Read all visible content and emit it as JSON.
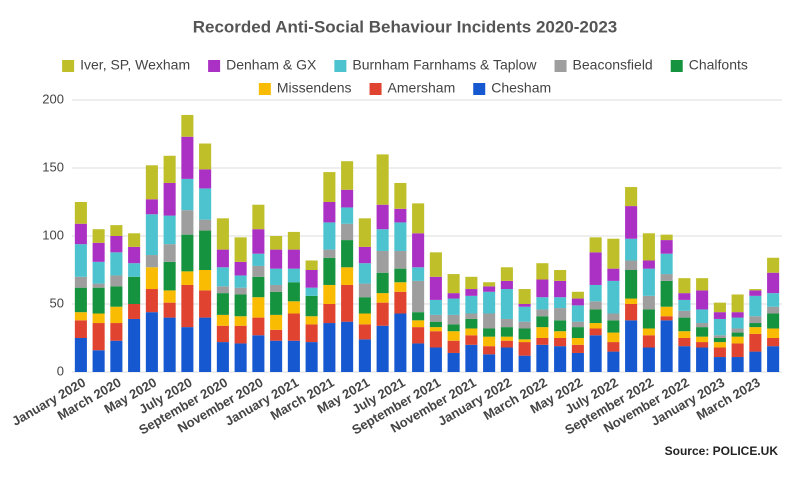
{
  "chart_data": {
    "type": "stacked_bar",
    "title": "Recorded Anti-Social Behaviour Incidents 2020-2023",
    "source": "Source:  POLICE.UK",
    "categories": [
      "January 2020",
      null,
      "March 2020",
      null,
      "May 2020",
      null,
      "July 2020",
      null,
      "September 2020",
      null,
      "November 2020",
      null,
      "January 2021",
      null,
      "March 2021",
      null,
      "May 2021",
      null,
      "July 2021",
      null,
      "September 2021",
      null,
      "November 2021",
      null,
      "January 2022",
      null,
      "March 2022",
      null,
      "May 2022",
      null,
      "July 2022",
      null,
      "September 2022",
      null,
      "November 2022",
      null,
      "January 2023",
      null,
      "March 2023",
      null
    ],
    "series": [
      {
        "name": "Iver, SP, Wexham",
        "color": "#bfbf2a",
        "values": [
          16,
          10,
          8,
          10,
          25,
          20,
          16,
          19,
          23,
          18,
          18,
          10,
          13,
          7,
          22,
          21,
          21,
          37,
          19,
          22,
          18,
          14,
          9,
          3,
          10,
          11,
          12,
          8,
          5,
          11,
          22,
          14,
          20,
          4,
          11,
          9,
          7,
          13,
          1,
          11
        ]
      },
      {
        "name": "Denham & GX",
        "color": "#ab30c4",
        "values": [
          15,
          14,
          12,
          12,
          11,
          24,
          31,
          14,
          13,
          10,
          18,
          14,
          14,
          13,
          15,
          13,
          12,
          18,
          10,
          25,
          17,
          4,
          5,
          4,
          6,
          2,
          13,
          12,
          5,
          24,
          9,
          24,
          6,
          10,
          5,
          14,
          5,
          4,
          4,
          15
        ]
      },
      {
        "name": "Burnham Farnhams & Taplow",
        "color": "#4cc3cf",
        "values": [
          24,
          16,
          17,
          10,
          30,
          21,
          23,
          23,
          14,
          9,
          9,
          12,
          10,
          6,
          20,
          12,
          15,
          16,
          21,
          10,
          11,
          12,
          13,
          16,
          22,
          11,
          9,
          8,
          12,
          12,
          24,
          16,
          20,
          15,
          8,
          10,
          12,
          8,
          15,
          10
        ]
      },
      {
        "name": "Beaconsfield",
        "color": "#9e9e9e",
        "values": [
          8,
          3,
          8,
          0,
          9,
          13,
          18,
          8,
          5,
          5,
          8,
          5,
          0,
          0,
          6,
          12,
          10,
          16,
          13,
          23,
          5,
          7,
          4,
          11,
          6,
          5,
          5,
          9,
          4,
          6,
          5,
          7,
          10,
          5,
          5,
          3,
          2,
          3,
          5,
          5
        ]
      },
      {
        "name": "Chalfonts",
        "color": "#15933f",
        "values": [
          18,
          19,
          15,
          20,
          0,
          21,
          27,
          29,
          16,
          16,
          15,
          17,
          14,
          15,
          20,
          20,
          12,
          15,
          10,
          6,
          4,
          5,
          7,
          6,
          7,
          8,
          8,
          8,
          8,
          10,
          9,
          21,
          14,
          19,
          10,
          7,
          3,
          3,
          3,
          11
        ]
      },
      {
        "name": "Missendens",
        "color": "#f9bc03",
        "values": [
          6,
          7,
          12,
          0,
          16,
          9,
          10,
          15,
          8,
          7,
          15,
          11,
          9,
          6,
          14,
          13,
          8,
          7,
          7,
          5,
          3,
          7,
          5,
          7,
          3,
          2,
          8,
          5,
          5,
          4,
          7,
          4,
          5,
          7,
          5,
          4,
          4,
          5,
          5,
          7
        ]
      },
      {
        "name": "Amersham",
        "color": "#e0432f",
        "values": [
          13,
          20,
          13,
          11,
          17,
          11,
          31,
          20,
          12,
          13,
          13,
          8,
          20,
          13,
          14,
          27,
          11,
          17,
          16,
          12,
          12,
          9,
          7,
          6,
          5,
          10,
          5,
          6,
          6,
          5,
          7,
          12,
          9,
          3,
          6,
          4,
          7,
          10,
          13,
          6
        ]
      },
      {
        "name": "Chesham",
        "color": "#1658cf",
        "values": [
          25,
          16,
          23,
          39,
          44,
          40,
          33,
          40,
          22,
          21,
          27,
          23,
          23,
          22,
          36,
          37,
          24,
          34,
          43,
          21,
          18,
          14,
          20,
          13,
          18,
          12,
          20,
          19,
          14,
          27,
          15,
          38,
          18,
          38,
          19,
          18,
          11,
          11,
          15,
          19
        ]
      }
    ],
    "ylim": [
      0,
      200
    ],
    "yticks": [
      0,
      50,
      100,
      150,
      200
    ],
    "grid": true
  }
}
